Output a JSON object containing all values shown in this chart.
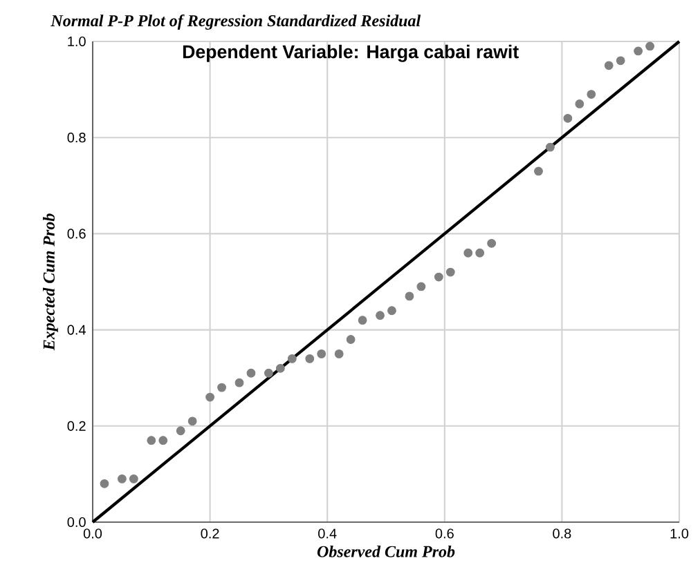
{
  "chart_data": {
    "type": "scatter",
    "title": "Normal P-P Plot of Regression Standardized Residual",
    "subtitle": "Dependent Variable: Harga cabai rawit",
    "xlabel": "Observed Cum Prob",
    "ylabel": "Expected Cum Prob",
    "xlim": [
      0,
      1
    ],
    "ylim": [
      0,
      1
    ],
    "xticks": [
      {
        "value": 0,
        "label": "0.0"
      },
      {
        "value": 0.2,
        "label": "0.2"
      },
      {
        "value": 0.4,
        "label": "0.4"
      },
      {
        "value": 0.6,
        "label": "0.6"
      },
      {
        "value": 0.8,
        "label": "0.8"
      },
      {
        "value": 1,
        "label": "1.0"
      }
    ],
    "yticks": [
      {
        "value": 0,
        "label": "0.0"
      },
      {
        "value": 0.2,
        "label": "0.2"
      },
      {
        "value": 0.4,
        "label": "0.4"
      },
      {
        "value": 0.6,
        "label": "0.6"
      },
      {
        "value": 0.8,
        "label": "0.8"
      },
      {
        "value": 1,
        "label": "1.0"
      }
    ],
    "grid": true,
    "marker": "circle",
    "series": [
      {
        "type": "scatter",
        "color": "#808080",
        "x": [
          0.02,
          0.05,
          0.07,
          0.1,
          0.12,
          0.15,
          0.17,
          0.2,
          0.22,
          0.25,
          0.27,
          0.3,
          0.32,
          0.34,
          0.37,
          0.39,
          0.42,
          0.44,
          0.46,
          0.49,
          0.51,
          0.54,
          0.56,
          0.59,
          0.61,
          0.64,
          0.66,
          0.68,
          0.76,
          0.78,
          0.81,
          0.83,
          0.85,
          0.88,
          0.9,
          0.93,
          0.95
        ],
        "values": [
          0.08,
          0.09,
          0.09,
          0.17,
          0.17,
          0.19,
          0.21,
          0.26,
          0.28,
          0.29,
          0.31,
          0.31,
          0.32,
          0.34,
          0.34,
          0.35,
          0.35,
          0.38,
          0.42,
          0.43,
          0.44,
          0.47,
          0.49,
          0.51,
          0.52,
          0.56,
          0.56,
          0.58,
          0.73,
          0.78,
          0.84,
          0.87,
          0.89,
          0.95,
          0.96,
          0.98,
          0.99
        ]
      },
      {
        "type": "line",
        "marker": "none",
        "color": "#000000",
        "x": [
          0,
          1
        ],
        "values": [
          0,
          1
        ]
      }
    ]
  }
}
